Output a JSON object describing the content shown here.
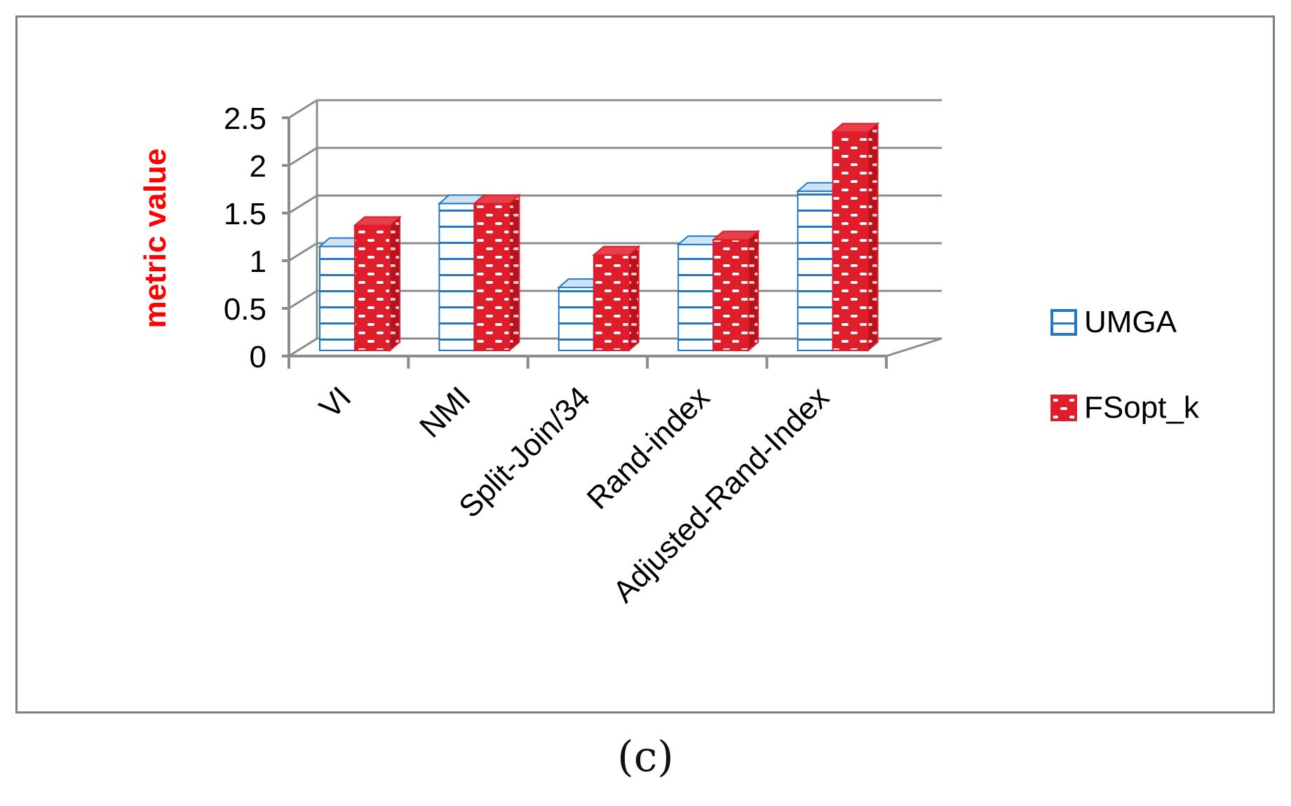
{
  "caption": "(c)",
  "chart_data": {
    "type": "bar",
    "title": "",
    "xlabel": "",
    "ylabel": "metric value",
    "ylim": [
      0,
      2.5
    ],
    "yticks": [
      "0",
      "0.5",
      "1",
      "1.5",
      "2",
      "2.5"
    ],
    "categories": [
      "VI",
      "NMI",
      "Split-Join/34",
      "Rand-index",
      "Adjusted-Rand-Index"
    ],
    "series": [
      {
        "name": "UMGA",
        "values": [
          1.15,
          1.6,
          0.72,
          1.17,
          1.73
        ],
        "color": "#1f78c8"
      },
      {
        "name": "FSopt_k",
        "values": [
          1.37,
          1.6,
          1.06,
          1.22,
          2.35
        ],
        "color": "#e01d2a"
      }
    ],
    "legend_position": "right",
    "grid": true,
    "colors": {
      "ylabel": "#ff0000",
      "grid": "#8c8c8c",
      "text": "#000000"
    }
  }
}
